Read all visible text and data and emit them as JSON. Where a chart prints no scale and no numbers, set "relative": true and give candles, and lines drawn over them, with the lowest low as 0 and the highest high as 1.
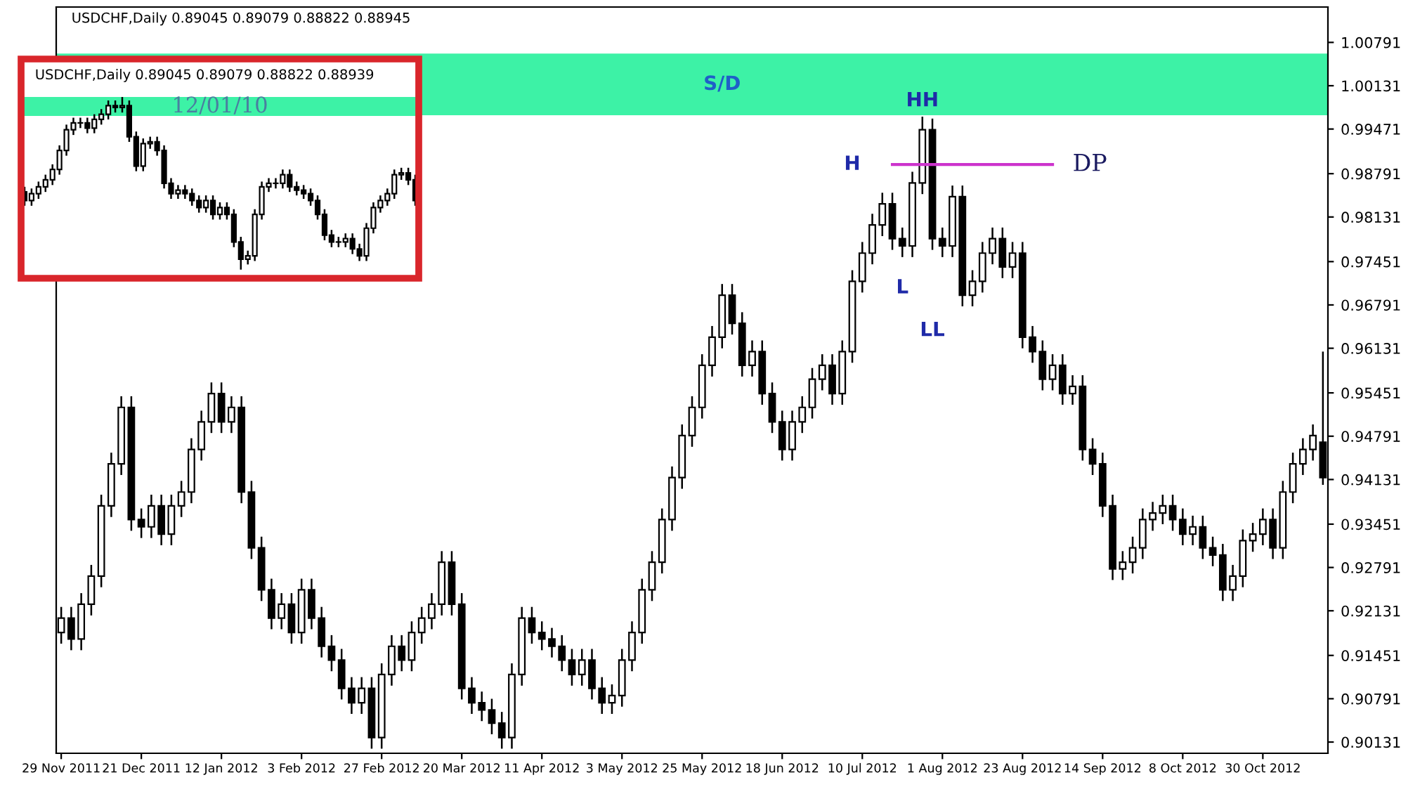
{
  "chart_data": [
    {
      "type": "candlestick",
      "title": "USDCHF,Daily 0.89045 0.89079 0.88822 0.88945",
      "categories": [
        "29 Nov 2011",
        null,
        null,
        null,
        null,
        null,
        null,
        null,
        "21 Dec 2011",
        null,
        null,
        null,
        null,
        null,
        null,
        null,
        "12 Jan 2012",
        null,
        null,
        null,
        null,
        null,
        null,
        null,
        "3 Feb 2012",
        null,
        null,
        null,
        null,
        null,
        null,
        null,
        "27 Feb 2012",
        null,
        null,
        null,
        null,
        null,
        null,
        null,
        "20 Mar 2012",
        null,
        null,
        null,
        null,
        null,
        null,
        null,
        "11 Apr 2012",
        null,
        null,
        null,
        null,
        null,
        null,
        null,
        "3 May 2012",
        null,
        null,
        null,
        null,
        null,
        null,
        null,
        "25 May 2012",
        null,
        null,
        null,
        null,
        null,
        null,
        null,
        "18 Jun 2012",
        null,
        null,
        null,
        null,
        null,
        null,
        null,
        "10 Jul 2012",
        null,
        null,
        null,
        null,
        null,
        null,
        null,
        "1 Aug 2012",
        null,
        null,
        null,
        null,
        null,
        null,
        null,
        "23 Aug 2012",
        null,
        null,
        null,
        null,
        null,
        null,
        null,
        "14 Sep 2012",
        null,
        null,
        null,
        null,
        null,
        null,
        null,
        "8 Oct 2012",
        null,
        null,
        null,
        null,
        null,
        null,
        null,
        "30 Oct 2012",
        null,
        null,
        null,
        null,
        null,
        null
      ],
      "ohlc": [
        [
          0.918,
          0.9219,
          0.9163,
          0.9202
        ],
        [
          0.9202,
          0.9219,
          0.9153,
          0.917
        ],
        [
          0.917,
          0.924,
          0.9153,
          0.9223
        ],
        [
          0.9223,
          0.9283,
          0.9206,
          0.9266
        ],
        [
          0.9266,
          0.939,
          0.9249,
          0.9373
        ],
        [
          0.9373,
          0.9454,
          0.9356,
          0.9437
        ],
        [
          0.9437,
          0.954,
          0.942,
          0.9523
        ],
        [
          0.9523,
          0.954,
          0.9335,
          0.9352
        ],
        [
          0.9352,
          0.9369,
          0.9324,
          0.9341
        ],
        [
          0.9341,
          0.939,
          0.9324,
          0.9373
        ],
        [
          0.9373,
          0.939,
          0.9313,
          0.933
        ],
        [
          0.933,
          0.939,
          0.9313,
          0.9373
        ],
        [
          0.9373,
          0.9411,
          0.9356,
          0.9394
        ],
        [
          0.9394,
          0.9476,
          0.9377,
          0.9459
        ],
        [
          0.9459,
          0.9518,
          0.9442,
          0.9501
        ],
        [
          0.9501,
          0.9561,
          0.9484,
          0.9544
        ],
        [
          0.9544,
          0.9561,
          0.9484,
          0.9501
        ],
        [
          0.9501,
          0.954,
          0.9484,
          0.9523
        ],
        [
          0.9523,
          0.954,
          0.9377,
          0.9394
        ],
        [
          0.9394,
          0.9411,
          0.9292,
          0.9309
        ],
        [
          0.9309,
          0.9326,
          0.9228,
          0.9245
        ],
        [
          0.9245,
          0.9262,
          0.9185,
          0.9202
        ],
        [
          0.9202,
          0.924,
          0.9185,
          0.9223
        ],
        [
          0.9223,
          0.924,
          0.9163,
          0.918
        ],
        [
          0.918,
          0.9262,
          0.9163,
          0.9245
        ],
        [
          0.9245,
          0.9262,
          0.9185,
          0.9202
        ],
        [
          0.9202,
          0.9219,
          0.9142,
          0.9159
        ],
        [
          0.9159,
          0.9176,
          0.9121,
          0.9138
        ],
        [
          0.9138,
          0.9155,
          0.9078,
          0.9095
        ],
        [
          0.9095,
          0.9112,
          0.9056,
          0.9073
        ],
        [
          0.9073,
          0.9112,
          0.9056,
          0.9095
        ],
        [
          0.9095,
          0.9112,
          0.9003,
          0.902
        ],
        [
          0.902,
          0.9133,
          0.9003,
          0.9116
        ],
        [
          0.9116,
          0.9176,
          0.9099,
          0.9159
        ],
        [
          0.9159,
          0.9176,
          0.9121,
          0.9138
        ],
        [
          0.9138,
          0.9197,
          0.9121,
          0.918
        ],
        [
          0.918,
          0.9219,
          0.9163,
          0.9202
        ],
        [
          0.9202,
          0.924,
          0.9185,
          0.9223
        ],
        [
          0.9223,
          0.9304,
          0.9206,
          0.9287
        ],
        [
          0.9287,
          0.9304,
          0.9206,
          0.9223
        ],
        [
          0.9223,
          0.924,
          0.9078,
          0.9095
        ],
        [
          0.9095,
          0.9112,
          0.9056,
          0.9073
        ],
        [
          0.9073,
          0.909,
          0.9045,
          0.9062
        ],
        [
          0.9062,
          0.9079,
          0.9025,
          0.9042
        ],
        [
          0.9042,
          0.9059,
          0.9003,
          0.902
        ],
        [
          0.902,
          0.9133,
          0.9003,
          0.9116
        ],
        [
          0.9116,
          0.9219,
          0.9099,
          0.9202
        ],
        [
          0.9202,
          0.9219,
          0.9163,
          0.918
        ],
        [
          0.918,
          0.9197,
          0.9153,
          0.917
        ],
        [
          0.917,
          0.9187,
          0.9142,
          0.9159
        ],
        [
          0.9159,
          0.9176,
          0.9121,
          0.9138
        ],
        [
          0.9138,
          0.9155,
          0.9099,
          0.9116
        ],
        [
          0.9116,
          0.9155,
          0.9099,
          0.9138
        ],
        [
          0.9138,
          0.9155,
          0.9078,
          0.9095
        ],
        [
          0.9095,
          0.9112,
          0.9056,
          0.9073
        ],
        [
          0.9073,
          0.9101,
          0.9056,
          0.9084
        ],
        [
          0.9084,
          0.9155,
          0.9067,
          0.9138
        ],
        [
          0.9138,
          0.9197,
          0.9121,
          0.918
        ],
        [
          0.918,
          0.9262,
          0.9163,
          0.9245
        ],
        [
          0.9245,
          0.9304,
          0.9228,
          0.9287
        ],
        [
          0.9287,
          0.9369,
          0.927,
          0.9352
        ],
        [
          0.9352,
          0.9433,
          0.9335,
          0.9416
        ],
        [
          0.9416,
          0.9497,
          0.9399,
          0.948
        ],
        [
          0.948,
          0.954,
          0.9463,
          0.9523
        ],
        [
          0.9523,
          0.9604,
          0.9506,
          0.9587
        ],
        [
          0.9587,
          0.9647,
          0.957,
          0.963
        ],
        [
          0.963,
          0.9711,
          0.9613,
          0.9694
        ],
        [
          0.9694,
          0.9711,
          0.9634,
          0.9651
        ],
        [
          0.9651,
          0.9668,
          0.957,
          0.9587
        ],
        [
          0.9587,
          0.9625,
          0.957,
          0.9608
        ],
        [
          0.9608,
          0.9625,
          0.9527,
          0.9544
        ],
        [
          0.9544,
          0.9561,
          0.9484,
          0.9501
        ],
        [
          0.9501,
          0.9518,
          0.9442,
          0.9459
        ],
        [
          0.9459,
          0.9518,
          0.9442,
          0.9501
        ],
        [
          0.9501,
          0.954,
          0.9484,
          0.9523
        ],
        [
          0.9523,
          0.9583,
          0.9506,
          0.9566
        ],
        [
          0.9566,
          0.9604,
          0.9549,
          0.9587
        ],
        [
          0.9587,
          0.9604,
          0.9527,
          0.9544
        ],
        [
          0.9544,
          0.9625,
          0.9527,
          0.9608
        ],
        [
          0.9608,
          0.9732,
          0.9591,
          0.9715
        ],
        [
          0.9715,
          0.9775,
          0.9698,
          0.9758
        ],
        [
          0.9758,
          0.9818,
          0.9741,
          0.9801
        ],
        [
          0.9801,
          0.985,
          0.9784,
          0.9833
        ],
        [
          0.9833,
          0.985,
          0.9763,
          0.978
        ],
        [
          0.978,
          0.9797,
          0.9752,
          0.9769
        ],
        [
          0.9769,
          0.9882,
          0.9752,
          0.9865
        ],
        [
          0.9865,
          0.9966,
          0.9848,
          0.9946
        ],
        [
          0.9946,
          0.9963,
          0.9763,
          0.978
        ],
        [
          0.978,
          0.9797,
          0.9752,
          0.9769
        ],
        [
          0.9769,
          0.9861,
          0.9752,
          0.9844
        ],
        [
          0.9844,
          0.9861,
          0.9677,
          0.9694
        ],
        [
          0.9694,
          0.9732,
          0.9677,
          0.9715
        ],
        [
          0.9715,
          0.9775,
          0.9698,
          0.9758
        ],
        [
          0.9758,
          0.9797,
          0.9741,
          0.978
        ],
        [
          0.978,
          0.9797,
          0.972,
          0.9737
        ],
        [
          0.9737,
          0.9775,
          0.972,
          0.9758
        ],
        [
          0.9758,
          0.9775,
          0.9613,
          0.963
        ],
        [
          0.963,
          0.9647,
          0.9591,
          0.9608
        ],
        [
          0.9608,
          0.9625,
          0.9549,
          0.9566
        ],
        [
          0.9566,
          0.9604,
          0.9549,
          0.9587
        ],
        [
          0.9587,
          0.9604,
          0.9527,
          0.9544
        ],
        [
          0.9544,
          0.9572,
          0.9527,
          0.9555
        ],
        [
          0.9555,
          0.9572,
          0.9442,
          0.9459
        ],
        [
          0.9459,
          0.9476,
          0.942,
          0.9437
        ],
        [
          0.9437,
          0.9454,
          0.9356,
          0.9373
        ],
        [
          0.9373,
          0.939,
          0.926,
          0.9277
        ],
        [
          0.9277,
          0.9304,
          0.926,
          0.9287
        ],
        [
          0.9287,
          0.9326,
          0.927,
          0.9309
        ],
        [
          0.9309,
          0.9369,
          0.9292,
          0.9352
        ],
        [
          0.9352,
          0.9379,
          0.9335,
          0.9362
        ],
        [
          0.9362,
          0.939,
          0.9345,
          0.9373
        ],
        [
          0.9373,
          0.939,
          0.9335,
          0.9352
        ],
        [
          0.9352,
          0.9369,
          0.9313,
          0.933
        ],
        [
          0.933,
          0.9358,
          0.9313,
          0.9341
        ],
        [
          0.9341,
          0.9358,
          0.9292,
          0.9309
        ],
        [
          0.9309,
          0.9326,
          0.9281,
          0.9298
        ],
        [
          0.9298,
          0.9315,
          0.9228,
          0.9245
        ],
        [
          0.9245,
          0.9283,
          0.9228,
          0.9266
        ],
        [
          0.9266,
          0.9337,
          0.9249,
          0.932
        ],
        [
          0.932,
          0.9347,
          0.9303,
          0.933
        ],
        [
          0.933,
          0.9369,
          0.9313,
          0.9352
        ],
        [
          0.9352,
          0.9369,
          0.9292,
          0.9309
        ],
        [
          0.9309,
          0.9411,
          0.9292,
          0.9394
        ],
        [
          0.9394,
          0.9454,
          0.9377,
          0.9437
        ],
        [
          0.9437,
          0.9476,
          0.942,
          0.9459
        ],
        [
          0.9459,
          0.9497,
          0.9442,
          0.948
        ],
        [
          0.947,
          0.9608,
          0.9405,
          0.9416
        ]
      ],
      "series": [
        {
          "type": "line",
          "name": "DP",
          "color": "#cc33cc",
          "values": [
            null,
            null,
            null,
            null,
            null,
            null,
            null,
            null,
            null,
            null,
            null,
            null,
            null,
            null,
            null,
            null,
            null,
            null,
            null,
            null,
            null,
            null,
            null,
            null,
            null,
            null,
            null,
            null,
            null,
            null,
            null,
            null,
            null,
            null,
            null,
            null,
            null,
            null,
            null,
            null,
            null,
            null,
            null,
            null,
            null,
            null,
            null,
            null,
            null,
            null,
            null,
            null,
            null,
            null,
            null,
            null,
            null,
            null,
            null,
            null,
            null,
            null,
            null,
            null,
            null,
            null,
            null,
            null,
            null,
            null,
            null,
            null,
            null,
            null,
            null,
            null,
            null,
            null,
            null,
            null,
            null,
            null,
            null,
            0.9893,
            0.9893,
            0.9893,
            0.9893,
            0.9893,
            0.9893,
            0.9893,
            0.9893,
            0.9893,
            0.9893,
            0.9893,
            0.9893,
            0.9893,
            0.9893,
            0.9893,
            0.9893,
            0.9893,
            null,
            null,
            null,
            null,
            null,
            null,
            null,
            null,
            null,
            null,
            null,
            null,
            null,
            null,
            null,
            null,
            null,
            null,
            null,
            null,
            null,
            null,
            null,
            null,
            null,
            null,
            null
          ]
        }
      ],
      "bands": [
        {
          "axis": "y",
          "from": 0.9968,
          "to": 1.0062,
          "label": "S/D",
          "color": "#3df2a6"
        }
      ],
      "annotations": [
        "HH",
        "H",
        "L",
        "LL"
      ],
      "ylim": [
        0.8996,
        1.0133
      ],
      "yticks": [
        1.00791,
        1.00131,
        0.99471,
        0.98791,
        0.98131,
        0.97451,
        0.96791,
        0.96131,
        0.95451,
        0.94791,
        0.94131,
        0.93451,
        0.92791,
        0.92131,
        0.91451,
        0.90791,
        0.90131
      ]
    },
    {
      "type": "candlestick",
      "relative": true,
      "title": "USDCHF,Daily 0.89045 0.89079 0.88822 0.88939",
      "categories": [
        null,
        null,
        null,
        null,
        null,
        null,
        null,
        null,
        null,
        null,
        null,
        null,
        null,
        null,
        null,
        null,
        null,
        null,
        null,
        null,
        null,
        null,
        null,
        null,
        null,
        null,
        null,
        null,
        null,
        null,
        null,
        null,
        null,
        null,
        null,
        null,
        null,
        null,
        null,
        null,
        null,
        null,
        null,
        null,
        null,
        null,
        null,
        null,
        null,
        null,
        null,
        null,
        null,
        null,
        null,
        null,
        null
      ],
      "ohlc": [
        [
          0.45,
          0.48,
          0.37,
          0.4
        ],
        [
          0.4,
          0.47,
          0.37,
          0.44
        ],
        [
          0.44,
          0.51,
          0.41,
          0.48
        ],
        [
          0.48,
          0.55,
          0.45,
          0.52
        ],
        [
          0.52,
          0.61,
          0.49,
          0.58
        ],
        [
          0.58,
          0.72,
          0.55,
          0.69
        ],
        [
          0.69,
          0.84,
          0.66,
          0.81
        ],
        [
          0.81,
          0.88,
          0.78,
          0.85
        ],
        [
          0.85,
          0.88,
          0.82,
          0.85
        ],
        [
          0.85,
          0.88,
          0.79,
          0.82
        ],
        [
          0.82,
          0.9,
          0.79,
          0.87
        ],
        [
          0.87,
          0.93,
          0.84,
          0.9
        ],
        [
          0.9,
          0.98,
          0.87,
          0.95
        ],
        [
          0.95,
          0.98,
          0.91,
          0.94
        ],
        [
          0.94,
          1.0,
          0.91,
          0.95
        ],
        [
          0.95,
          0.98,
          0.74,
          0.77
        ],
        [
          0.77,
          0.8,
          0.57,
          0.6
        ],
        [
          0.6,
          0.76,
          0.57,
          0.73
        ],
        [
          0.73,
          0.77,
          0.7,
          0.74
        ],
        [
          0.74,
          0.77,
          0.66,
          0.69
        ],
        [
          0.69,
          0.72,
          0.47,
          0.5
        ],
        [
          0.5,
          0.53,
          0.41,
          0.44
        ],
        [
          0.44,
          0.49,
          0.41,
          0.46
        ],
        [
          0.46,
          0.49,
          0.41,
          0.44
        ],
        [
          0.44,
          0.47,
          0.37,
          0.4
        ],
        [
          0.4,
          0.43,
          0.33,
          0.36
        ],
        [
          0.36,
          0.43,
          0.33,
          0.4
        ],
        [
          0.4,
          0.43,
          0.29,
          0.32
        ],
        [
          0.32,
          0.39,
          0.29,
          0.36
        ],
        [
          0.36,
          0.39,
          0.29,
          0.32
        ],
        [
          0.32,
          0.35,
          0.13,
          0.16
        ],
        [
          0.16,
          0.19,
          0.0,
          0.06
        ],
        [
          0.06,
          0.11,
          0.03,
          0.08
        ],
        [
          0.08,
          0.35,
          0.05,
          0.32
        ],
        [
          0.32,
          0.51,
          0.29,
          0.48
        ],
        [
          0.48,
          0.53,
          0.45,
          0.5
        ],
        [
          0.5,
          0.53,
          0.47,
          0.5
        ],
        [
          0.5,
          0.58,
          0.47,
          0.55
        ],
        [
          0.55,
          0.58,
          0.45,
          0.48
        ],
        [
          0.48,
          0.51,
          0.43,
          0.46
        ],
        [
          0.46,
          0.49,
          0.41,
          0.44
        ],
        [
          0.44,
          0.47,
          0.37,
          0.4
        ],
        [
          0.4,
          0.43,
          0.29,
          0.32
        ],
        [
          0.32,
          0.35,
          0.17,
          0.2
        ],
        [
          0.2,
          0.23,
          0.13,
          0.16
        ],
        [
          0.16,
          0.19,
          0.13,
          0.16
        ],
        [
          0.16,
          0.21,
          0.13,
          0.18
        ],
        [
          0.18,
          0.21,
          0.09,
          0.12
        ],
        [
          0.12,
          0.15,
          0.05,
          0.08
        ],
        [
          0.08,
          0.27,
          0.05,
          0.24
        ],
        [
          0.24,
          0.39,
          0.21,
          0.36
        ],
        [
          0.36,
          0.43,
          0.33,
          0.4
        ],
        [
          0.4,
          0.47,
          0.37,
          0.44
        ],
        [
          0.44,
          0.58,
          0.41,
          0.55
        ],
        [
          0.55,
          0.59,
          0.52,
          0.56
        ],
        [
          0.56,
          0.59,
          0.49,
          0.52
        ],
        [
          0.52,
          0.55,
          0.37,
          0.4
        ]
      ],
      "bands": [
        {
          "axis": "y",
          "from": 0.89,
          "to": 1.0,
          "color": "#3df2a6"
        }
      ],
      "annotations": [
        "12/01/10"
      ]
    }
  ]
}
